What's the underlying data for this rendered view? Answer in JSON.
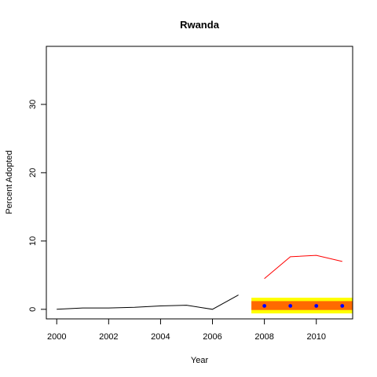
{
  "chart_data": {
    "type": "line",
    "title": "Rwanda",
    "xlabel": "Year",
    "ylabel": "Percent Adopted",
    "xlim": [
      1999.6,
      2011.4
    ],
    "ylim": [
      -1.4,
      38.5
    ],
    "x_ticks": [
      "2000",
      "2002",
      "2004",
      "2006",
      "2008",
      "2010"
    ],
    "y_ticks": [
      "0",
      "10",
      "20",
      "30"
    ],
    "grid": false,
    "legend": "none",
    "series": [
      {
        "color": "#000000",
        "x": [
          2000,
          2001,
          2002,
          2003,
          2004,
          2005,
          2006,
          2007
        ],
        "y": [
          0.0,
          0.2,
          0.2,
          0.3,
          0.5,
          0.6,
          0.0,
          2.1
        ]
      },
      {
        "color": "#ff0000",
        "x": [
          2008,
          2009,
          2010,
          2011
        ],
        "y": [
          4.5,
          7.7,
          7.9,
          7.0
        ]
      }
    ],
    "band": {
      "x": [
        2007.5,
        2011.4
      ],
      "outer": [
        -0.6,
        1.7
      ],
      "inner": [
        -0.1,
        1.2
      ],
      "outer_color": "#ffff00",
      "inner_color": "#ff6a00"
    },
    "points": {
      "color": "#0000ff",
      "x": [
        2008,
        2009,
        2010,
        2011
      ],
      "y": [
        0.5,
        0.5,
        0.5,
        0.5
      ]
    }
  }
}
